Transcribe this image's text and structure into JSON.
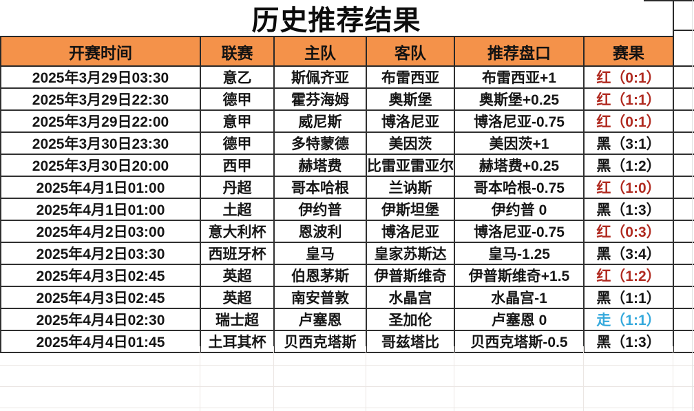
{
  "title": "历史推荐结果",
  "table": {
    "columns": [
      "开赛时间",
      "联赛",
      "主队",
      "客队",
      "推荐盘口",
      "赛果"
    ],
    "rows": [
      {
        "time": "2025年3月29日03:30",
        "league": "意乙",
        "home": "斯佩齐亚",
        "away": "布雷西亚",
        "handicap": "布雷西亚+1",
        "result": "红（0:1）",
        "result_type": "win"
      },
      {
        "time": "2025年3月29日22:30",
        "league": "德甲",
        "home": "霍芬海姆",
        "away": "奥斯堡",
        "handicap": "奥斯堡+0.25",
        "result": "红（1:1）",
        "result_type": "win"
      },
      {
        "time": "2025年3月29日22:00",
        "league": "意甲",
        "home": "威尼斯",
        "away": "博洛尼亚",
        "handicap": "博洛尼亚-0.75",
        "result": "红（0:1）",
        "result_type": "win"
      },
      {
        "time": "2025年3月30日23:30",
        "league": "德甲",
        "home": "多特蒙德",
        "away": "美因茨",
        "handicap": "美因茨+1",
        "result": "黑（3:1）",
        "result_type": "lose"
      },
      {
        "time": "2025年3月30日20:00",
        "league": "西甲",
        "home": "赫塔费",
        "away": "比雷亚雷亚尔",
        "handicap": "赫塔费+0.25",
        "result": "黑（1:2）",
        "result_type": "lose"
      },
      {
        "time": "2025年4月1日01:00",
        "league": "丹超",
        "home": "哥本哈根",
        "away": "兰讷斯",
        "handicap": "哥本哈根-0.75",
        "result": "红（1:0）",
        "result_type": "win"
      },
      {
        "time": "2025年4月1日01:00",
        "league": "土超",
        "home": "伊约普",
        "away": "伊斯坦堡",
        "handicap": "伊约普 0",
        "result": "黑（1:3）",
        "result_type": "lose"
      },
      {
        "time": "2025年4月2日03:00",
        "league": "意大利杯",
        "home": "恩波利",
        "away": "博洛尼亚",
        "handicap": "博洛尼亚-0.75",
        "result": "红（0:3）",
        "result_type": "win"
      },
      {
        "time": "2025年4月2日03:30",
        "league": "西班牙杯",
        "home": "皇马",
        "away": "皇家苏斯达",
        "handicap": "皇马-1.25",
        "result": "黑（3:4）",
        "result_type": "lose"
      },
      {
        "time": "2025年4月3日02:45",
        "league": "英超",
        "home": "伯恩茅斯",
        "away": "伊普斯维奇",
        "handicap": "伊普斯维奇+1.5",
        "result": "红（1:2）",
        "result_type": "win"
      },
      {
        "time": "2025年4月3日02:45",
        "league": "英超",
        "home": "南安普敦",
        "away": "水晶宫",
        "handicap": "水晶宫-1",
        "result": "黑（1:1）",
        "result_type": "lose"
      },
      {
        "time": "2025年4月4日02:30",
        "league": "瑞士超",
        "home": "卢塞恩",
        "away": "圣加伦",
        "handicap": "卢塞恩 0",
        "result": "走（1:1）",
        "result_type": "push"
      },
      {
        "time": "2025年4月4日01:45",
        "league": "土耳其杯",
        "home": "贝西克塔斯",
        "away": "哥兹塔比",
        "handicap": "贝西克塔斯-0.5",
        "result": "黑（1:3）",
        "result_type": "lose"
      }
    ]
  },
  "colors": {
    "header_bg": "#F4924A",
    "result_win_red": "#B02A20",
    "result_lose_black": "#161616",
    "result_push_blue": "#35A9DC",
    "grid_dark": "#2a2a2a",
    "grid_faint": "#ebe6e3"
  }
}
